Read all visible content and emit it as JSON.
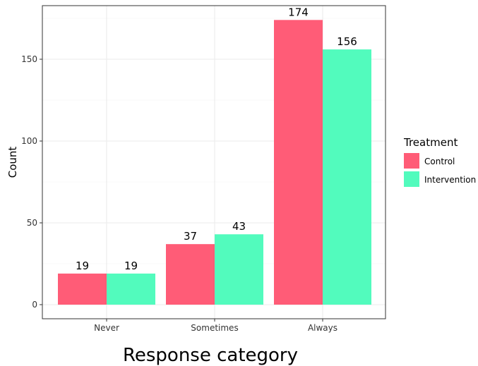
{
  "chart_data": {
    "type": "bar",
    "categories": [
      "Never",
      "Sometimes",
      "Always"
    ],
    "series": [
      {
        "name": "Control",
        "values": [
          19,
          37,
          174
        ]
      },
      {
        "name": "Intervention",
        "values": [
          19,
          43,
          156
        ]
      }
    ],
    "xlabel": "Response category",
    "ylabel": "Count",
    "ylim": [
      0,
      183
    ],
    "yticks": [
      0,
      50,
      100,
      150
    ],
    "grid": true,
    "legend": {
      "title": "Treatment",
      "position": "right"
    },
    "colors": {
      "Control": "#ff5c77",
      "Intervention": "#52fbbd"
    }
  }
}
